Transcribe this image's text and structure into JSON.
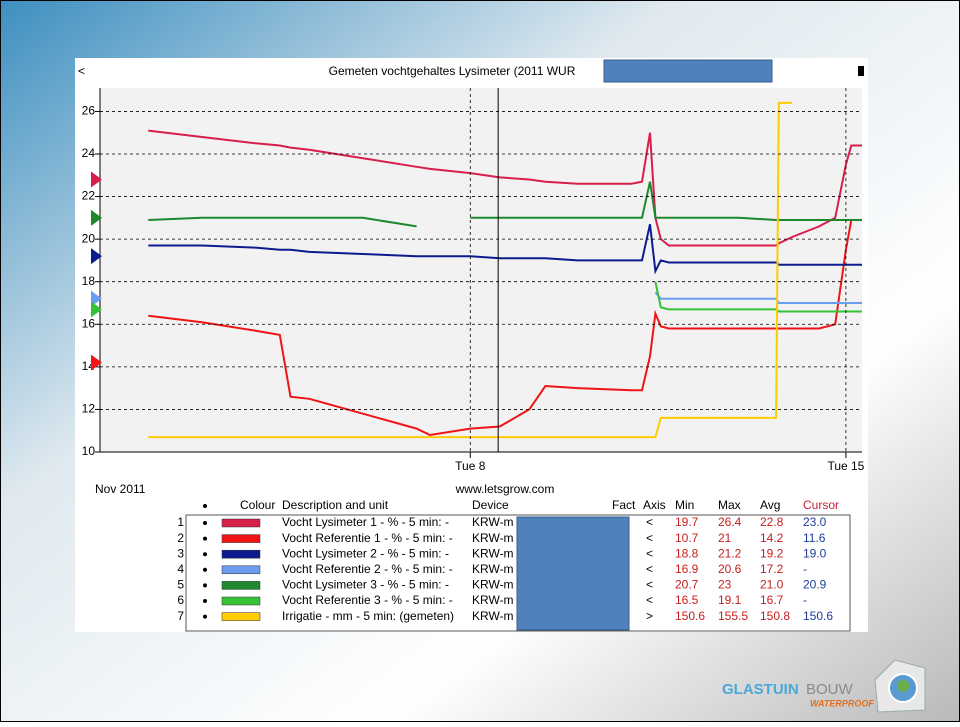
{
  "chart_data": {
    "type": "line",
    "title": "Gemeten vochtgehaltes Lysimeter  (2011 WUR",
    "nav_label": "<",
    "date_label": "Nov 2011",
    "source": "www.letsgrow.com",
    "x": [
      2,
      3,
      4,
      4.45,
      4.65,
      5,
      6,
      7,
      7.25,
      8,
      8.55,
      9.1,
      9.4,
      10,
      11,
      11.2,
      11.35,
      11.45,
      11.55,
      11.7,
      12,
      13,
      13.7,
      13.75,
      14,
      14.5,
      14.8,
      15,
      15.1,
      15.3
    ],
    "xlim": [
      1.1,
      15.3
    ],
    "xticks": [
      {
        "value": 8,
        "label": "Tue 8"
      },
      {
        "value": 15,
        "label": "Tue 15"
      }
    ],
    "ylim": [
      10,
      27.1
    ],
    "yticks": [
      10,
      12,
      14,
      16,
      18,
      20,
      22,
      24,
      26
    ],
    "grid": true,
    "cursor_x": 8.52,
    "table_columns": [
      "Colour",
      "Description and unit",
      "Device",
      "Fact",
      "Axis",
      "Min",
      "Max",
      "Avg",
      "Cursor"
    ],
    "series": [
      {
        "no": 1,
        "name": "Vocht Lysimeter 1 - % - 5 min: -",
        "device": "KRW-m",
        "axis_side": "<",
        "color": "#d81e4a",
        "min": 19.7,
        "max": 26.4,
        "avg": 22.8,
        "cursor": 23.0,
        "cursor_label": "23.0",
        "values": [
          25.1,
          24.8,
          24.5,
          24.4,
          24.3,
          24.2,
          23.8,
          23.4,
          23.3,
          23.1,
          22.9,
          22.8,
          22.7,
          22.6,
          22.6,
          22.7,
          25.0,
          21.0,
          20.0,
          19.7,
          19.7,
          19.7,
          19.7,
          19.8,
          20.1,
          20.6,
          21.0,
          23.5,
          24.4,
          24.4
        ]
      },
      {
        "no": 2,
        "name": "Vocht Referentie 1 - % - 5 min: -",
        "device": "KRW-m",
        "axis_side": "<",
        "color": "#f01414",
        "min": 10.7,
        "max": 21.0,
        "avg": 14.2,
        "cursor": 11.6,
        "values": [
          16.4,
          16.1,
          15.7,
          15.5,
          12.6,
          12.5,
          11.8,
          11.1,
          10.8,
          11.1,
          11.2,
          12.0,
          13.1,
          13.0,
          12.9,
          12.9,
          14.5,
          16.5,
          15.9,
          15.8,
          15.8,
          15.8,
          15.8,
          15.8,
          15.8,
          15.8,
          16.0,
          19.5,
          20.9,
          20.9
        ]
      },
      {
        "no": 3,
        "name": "Vocht Lysimeter 2 - % - 5 min: -",
        "device": "KRW-m",
        "axis_side": "<",
        "color": "#0c1c8e",
        "min": 18.8,
        "max": 21.2,
        "avg": 19.2,
        "cursor": 19.0,
        "cursor_label": "19.0",
        "values": [
          19.7,
          19.7,
          19.6,
          19.5,
          19.5,
          19.4,
          19.3,
          19.2,
          19.2,
          19.2,
          19.1,
          19.1,
          19.1,
          19.0,
          19.0,
          19.0,
          20.7,
          18.5,
          19.0,
          18.9,
          18.9,
          18.9,
          18.9,
          18.8,
          18.8,
          18.8,
          18.8,
          18.8,
          18.8,
          18.8
        ]
      },
      {
        "no": 4,
        "name": "Vocht Referentie 2 - % - 5 min: -",
        "device": "KRW-m",
        "axis_side": "<",
        "color": "#6a9cf0",
        "min": 16.9,
        "max": 20.6,
        "avg": 17.2,
        "cursor": "-",
        "values": [
          null,
          null,
          null,
          null,
          null,
          null,
          null,
          null,
          null,
          null,
          null,
          null,
          null,
          null,
          null,
          null,
          null,
          17.5,
          17.2,
          17.2,
          17.2,
          17.2,
          17.2,
          17.0,
          17.0,
          17.0,
          17.0,
          17.0,
          17.0,
          17.0
        ]
      },
      {
        "no": 5,
        "name": "Vocht Lysimeter 3 - % - 5 min: -",
        "device": "KRW-m",
        "axis_side": "<",
        "color": "#1c8a2c",
        "min": 20.7,
        "max": 23.0,
        "avg": 21.0,
        "avg_label": "21.0",
        "cursor": 20.9,
        "values": [
          20.9,
          21.0,
          21.0,
          21.0,
          21.0,
          21.0,
          21.0,
          20.6,
          null,
          21.0,
          21.0,
          21.0,
          21.0,
          21.0,
          21.0,
          21.0,
          22.7,
          21.0,
          21.0,
          21.0,
          21.0,
          21.0,
          20.9,
          20.9,
          20.9,
          20.9,
          20.9,
          20.9,
          20.9,
          20.9
        ]
      },
      {
        "no": 6,
        "name": "Vocht Referentie 3 - % - 5 min: -",
        "device": "KRW-m",
        "axis_side": "<",
        "color": "#36c236",
        "min": 16.5,
        "max": 19.1,
        "avg": 16.7,
        "cursor": "-",
        "values": [
          null,
          null,
          null,
          null,
          null,
          null,
          null,
          null,
          null,
          null,
          null,
          null,
          null,
          null,
          null,
          null,
          null,
          18.0,
          16.8,
          16.7,
          16.7,
          16.7,
          16.7,
          16.6,
          16.6,
          16.6,
          16.6,
          16.6,
          16.6,
          16.6
        ]
      },
      {
        "no": 7,
        "name": "Irrigatie - mm - 5 min: (gemeten)",
        "device": "KRW-m",
        "axis_side": ">",
        "color": "#ffcc00",
        "min": 150.6,
        "max": 155.5,
        "avg": 150.8,
        "cursor": 150.6,
        "values": [
          10.7,
          10.7,
          10.7,
          10.7,
          10.7,
          10.7,
          10.7,
          10.7,
          10.7,
          10.7,
          10.7,
          10.7,
          10.7,
          10.7,
          10.7,
          10.7,
          10.7,
          10.7,
          11.6,
          11.6,
          11.6,
          11.6,
          11.6,
          26.4,
          26.4,
          null,
          null,
          null,
          null,
          null
        ]
      }
    ]
  },
  "logo": {
    "word1": "GLASTUIN",
    "word2": "BOUW",
    "tagline": "WATERPROOF"
  }
}
